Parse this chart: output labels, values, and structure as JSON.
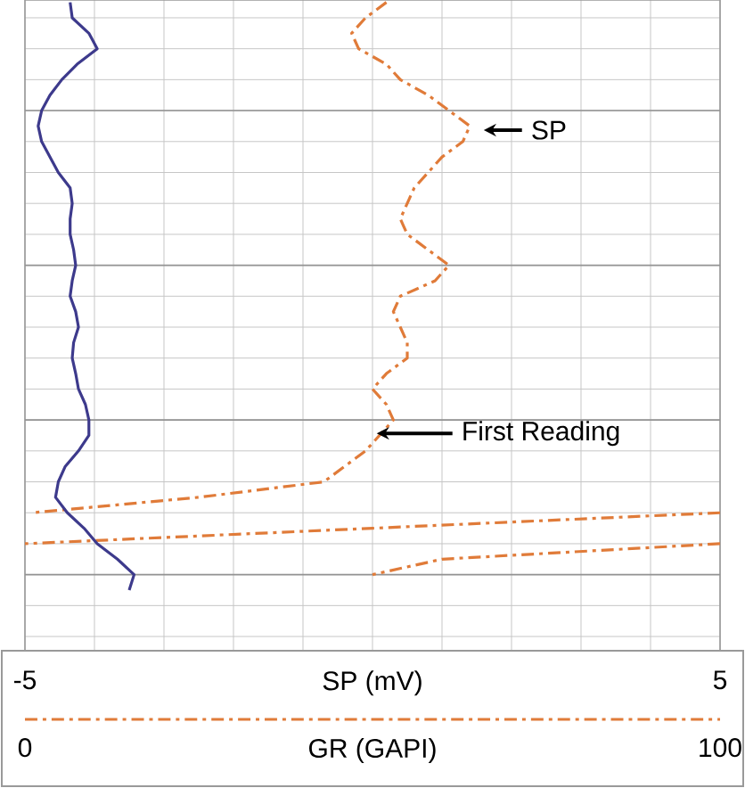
{
  "chart_data": {
    "type": "line",
    "orientation": "horizontal",
    "categories": [
      null,
      null,
      null,
      null,
      null,
      null,
      null,
      null,
      null,
      null,
      null,
      null,
      null,
      null,
      null,
      null,
      null,
      null,
      null,
      null,
      null,
      null,
      null,
      null,
      null,
      null,
      null,
      null,
      null,
      null,
      null,
      null,
      null,
      null,
      null,
      null,
      null,
      null,
      null,
      null,
      null,
      null
    ],
    "xlabel": "SP (mV)",
    "x2label": "GR (GAPI)",
    "xlim": [
      -5,
      5
    ],
    "xticks": [
      -5,
      {
        "value": -4,
        "label": null
      },
      {
        "value": -3,
        "label": null
      },
      {
        "value": -2,
        "label": null
      },
      {
        "value": -1,
        "label": null
      },
      {
        "value": 0,
        "label": null
      },
      {
        "value": 1,
        "label": null
      },
      {
        "value": 2,
        "label": null
      },
      {
        "value": 3,
        "label": null
      },
      {
        "value": 4,
        "label": null
      },
      5
    ],
    "x2lim": [
      0,
      100
    ],
    "x2ticks": [
      0,
      100
    ],
    "tick_labels": "x",
    "grid": true,
    "annotations": [
      "SP",
      "First Reading"
    ],
    "series": [
      {
        "color": "#3d3a8c",
        "axis": "x2",
        "line_style": "solid",
        "values": [
          6.5,
          6.8,
          9.2,
          10.4,
          7.5,
          5.3,
          3.6,
          2.4,
          1.9,
          2.4,
          3.6,
          4.8,
          6.5,
          6.8,
          6.5,
          6.5,
          7.0,
          7.3,
          6.8,
          6.5,
          7.3,
          7.7,
          7.0,
          6.8,
          7.3,
          7.7,
          8.7,
          9.2,
          9.2,
          7.7,
          5.8,
          4.8,
          4.4,
          6.1,
          8.5,
          10.4,
          13.3,
          15.7,
          15.0,
          null,
          null,
          null
        ]
      },
      {
        "color": "#e07b39",
        "line_style": "dashed",
        "values": [
          0.2,
          -0.1,
          -0.3,
          -0.2,
          0.2,
          0.4,
          0.8,
          1.1,
          1.4,
          1.3,
          1.0,
          0.8,
          0.6,
          0.5,
          0.4,
          0.5,
          0.8,
          1.1,
          0.9,
          0.4,
          0.3,
          0.4,
          0.5,
          0.5,
          0.2,
          0.0,
          0.2,
          0.3,
          0.1,
          -0.1,
          -0.4,
          -0.7,
          -2.5,
          -4.9,
          null,
          null,
          null,
          null,
          null,
          null,
          null,
          null
        ]
      },
      {
        "color": "#e07b39",
        "line_style": "dashed",
        "values": [
          null,
          null,
          null,
          null,
          null,
          null,
          null,
          null,
          null,
          null,
          null,
          null,
          null,
          null,
          null,
          null,
          null,
          null,
          null,
          null,
          null,
          null,
          null,
          null,
          null,
          null,
          null,
          null,
          null,
          null,
          null,
          null,
          null,
          5.0,
          0.0,
          -5.0,
          null,
          null,
          null,
          null,
          null,
          null
        ]
      },
      {
        "color": "#e07b39",
        "line_style": "dashed",
        "values": [
          null,
          null,
          null,
          null,
          null,
          null,
          null,
          null,
          null,
          null,
          null,
          null,
          null,
          null,
          null,
          null,
          null,
          null,
          null,
          null,
          null,
          null,
          null,
          null,
          null,
          null,
          null,
          null,
          null,
          null,
          null,
          null,
          null,
          null,
          null,
          5.0,
          1.0,
          0.0,
          null,
          null,
          null,
          null
        ]
      }
    ]
  }
}
